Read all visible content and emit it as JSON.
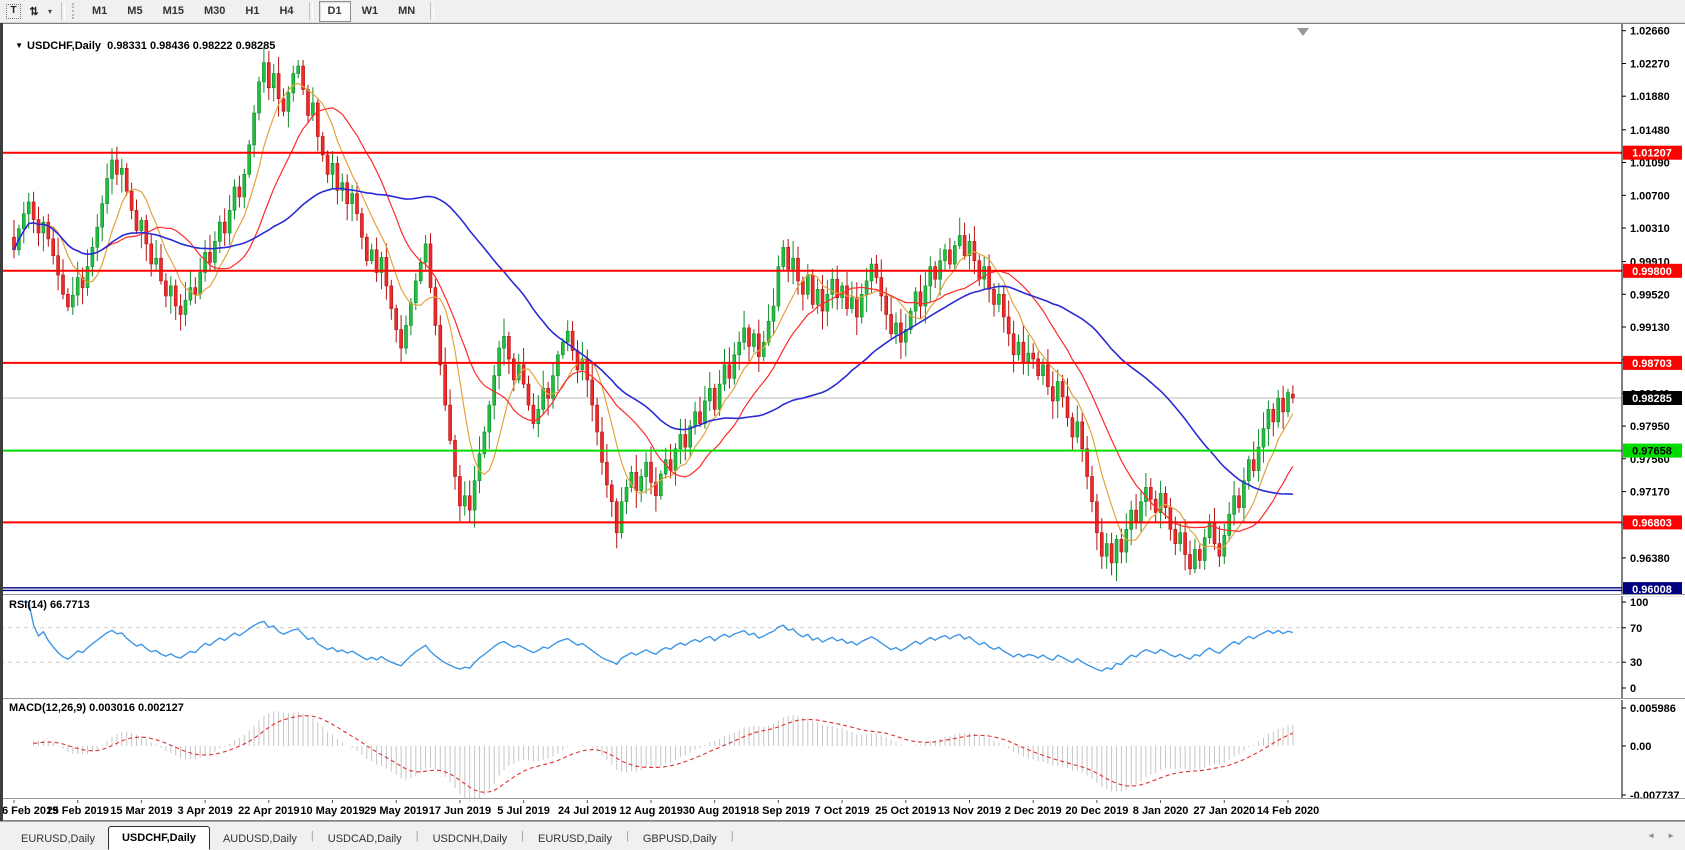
{
  "toolbar": {
    "tools": [
      {
        "name": "text-tool",
        "glyph": "T"
      },
      {
        "name": "arrange-tool",
        "glyph": "⇅"
      },
      {
        "name": "dropdown-caret",
        "glyph": "▾"
      }
    ],
    "timeframes": [
      "M1",
      "M5",
      "M15",
      "M30",
      "H1",
      "H4",
      "D1",
      "W1",
      "MN"
    ],
    "active_timeframe": "D1"
  },
  "chart_header": {
    "dropdown_glyph": "▼",
    "symbol_label": "USDCHF,Daily",
    "ohlc_text": "0.98331 0.98436 0.98222 0.98285"
  },
  "indicators": {
    "rsi_label": "RSI(14) 66.7713",
    "macd_label": "MACD(12,26,9) 0.003016 0.002127"
  },
  "tabs": {
    "items": [
      "EURUSD,Daily",
      "USDCHF,Daily",
      "AUDUSD,Daily",
      "USDCAD,Daily",
      "USDCNH,Daily",
      "EURUSD,Daily",
      "GBPUSD,Daily"
    ],
    "active_index": 1,
    "scroll_left_glyph": "◄",
    "scroll_right_glyph": "►"
  },
  "chart_data": {
    "type": "candlestick",
    "symbol": "USDCHF",
    "timeframe": "Daily",
    "ohlc_current": {
      "open": 0.98331,
      "high": 0.98436,
      "low": 0.98222,
      "close": 0.98285
    },
    "price_axis": {
      "max": 1.0274,
      "min": 0.9595,
      "ticks": [
        "1.02660",
        "1.02270",
        "1.01880",
        "1.01480",
        "1.01090",
        "1.00700",
        "1.00310",
        "0.99910",
        "0.99520",
        "0.99130",
        "0.98740",
        "0.98340",
        "0.97950",
        "0.97560",
        "0.97170",
        "0.96780",
        "0.96380"
      ]
    },
    "current_price": {
      "value": 0.98285,
      "label": "0.98285"
    },
    "levels": [
      {
        "label": "1.01207",
        "value": 1.01207,
        "color": "#FF0000",
        "width": 2,
        "text_color": "#FFFFFF",
        "double": false
      },
      {
        "label": "0.99800",
        "value": 0.998,
        "color": "#FF0000",
        "width": 2,
        "text_color": "#FFFFFF",
        "double": false
      },
      {
        "label": "0.98703",
        "value": 0.98703,
        "color": "#FF0000",
        "width": 2,
        "text_color": "#FFFFFF",
        "double": false
      },
      {
        "label": "0.97658",
        "value": 0.97658,
        "color": "#00DC00",
        "width": 2,
        "text_color": "#000000",
        "double": false
      },
      {
        "label": "0.96803",
        "value": 0.96803,
        "color": "#FF0000",
        "width": 2,
        "text_color": "#FFFFFF",
        "double": false
      },
      {
        "label": "0.96008",
        "value": 0.96008,
        "color": "#000080",
        "width": 2,
        "text_color": "#FFFFFF",
        "double": true
      }
    ],
    "x_axis_dates": [
      "6 Feb 2019",
      "25 Feb 2019",
      "15 Mar 2019",
      "3 Apr 2019",
      "22 Apr 2019",
      "10 May 2019",
      "29 May 2019",
      "17 Jun 2019",
      "5 Jul 2019",
      "24 Jul 2019",
      "12 Aug 2019",
      "30 Aug 2019",
      "18 Sep 2019",
      "7 Oct 2019",
      "25 Oct 2019",
      "13 Nov 2019",
      "2 Dec 2019",
      "20 Dec 2019",
      "8 Jan 2020",
      "27 Jan 2020",
      "14 Feb 2020"
    ],
    "candles": {
      "closes": [
        1.0005,
        1.003,
        1.0048,
        1.0062,
        1.0041,
        1.0025,
        1.0038,
        1.0018,
        0.9998,
        0.9975,
        0.9952,
        0.9937,
        0.9951,
        0.9972,
        0.996,
        0.9985,
        1.0008,
        1.0032,
        1.006,
        1.009,
        1.0112,
        1.0095,
        1.0102,
        1.0075,
        1.0052,
        1.0028,
        1.004,
        1.0012,
        0.9988,
        0.9995,
        0.9968,
        0.995,
        0.9962,
        0.9938,
        0.9928,
        0.9945,
        0.996,
        0.9952,
        0.9978,
        1.0002,
        0.999,
        1.0015,
        1.0038,
        1.0025,
        1.0052,
        1.008,
        1.0068,
        1.0095,
        1.013,
        1.0168,
        1.0205,
        1.0228,
        1.0198,
        1.0215,
        1.0185,
        1.017,
        1.0192,
        1.0215,
        1.0224,
        1.0196,
        1.0165,
        1.018,
        1.014,
        1.0118,
        1.0095,
        1.0108,
        1.0076,
        1.0085,
        1.006,
        1.0072,
        1.0048,
        1.002,
        0.9992,
        1.0005,
        0.9978,
        0.9996,
        0.9962,
        0.9935,
        0.991,
        0.9888,
        0.9915,
        0.9942,
        0.9968,
        0.999,
        1.0012,
        0.996,
        0.9915,
        0.9868,
        0.982,
        0.9778,
        0.9735,
        0.97,
        0.9712,
        0.9695,
        0.973,
        0.9762,
        0.9788,
        0.982,
        0.9855,
        0.9888,
        0.9902,
        0.9875,
        0.985,
        0.9868,
        0.9845,
        0.982,
        0.9798,
        0.9815,
        0.984,
        0.9828,
        0.9855,
        0.988,
        0.9895,
        0.9908,
        0.9885,
        0.9862,
        0.9875,
        0.985,
        0.982,
        0.9788,
        0.9752,
        0.9725,
        0.9705,
        0.9668,
        0.9705,
        0.9722,
        0.974,
        0.9718,
        0.9735,
        0.9752,
        0.9728,
        0.9712,
        0.9738,
        0.9755,
        0.9742,
        0.9768,
        0.9785,
        0.977,
        0.9795,
        0.9812,
        0.9798,
        0.9825,
        0.984,
        0.9815,
        0.9845,
        0.9868,
        0.9852,
        0.988,
        0.9895,
        0.9912,
        0.989,
        0.9905,
        0.9878,
        0.9895,
        0.992,
        0.9938,
        0.9985,
        1.0008,
        0.9982,
        0.9995,
        0.9968,
        0.9952,
        0.9975,
        0.994,
        0.9958,
        0.9932,
        0.9952,
        0.997,
        0.9948,
        0.9962,
        0.9935,
        0.9948,
        0.9925,
        0.9952,
        0.9968,
        0.9988,
        0.9972,
        0.995,
        0.9928,
        0.9905,
        0.9918,
        0.9895,
        0.991,
        0.9932,
        0.9955,
        0.9938,
        0.9962,
        0.9985,
        0.997,
        0.9992,
        1.0005,
        0.9988,
        1.001,
        1.0022,
        0.9998,
        1.0015,
        0.9992,
        0.997,
        0.9985,
        0.9958,
        0.994,
        0.9952,
        0.9925,
        0.9905,
        0.988,
        0.9895,
        0.987,
        0.9882,
        0.9875,
        0.9855,
        0.9868,
        0.9842,
        0.9825,
        0.9848,
        0.983,
        0.9805,
        0.9782,
        0.98,
        0.9768,
        0.9735,
        0.9705,
        0.9668,
        0.964,
        0.9655,
        0.9632,
        0.966,
        0.9645,
        0.9672,
        0.9695,
        0.968,
        0.9705,
        0.9722,
        0.9708,
        0.9692,
        0.9715,
        0.9698,
        0.9672,
        0.9655,
        0.9668,
        0.9642,
        0.9625,
        0.9648,
        0.9635,
        0.9662,
        0.968,
        0.9655,
        0.964,
        0.9665,
        0.969,
        0.9712,
        0.9698,
        0.973,
        0.9755,
        0.9742,
        0.977,
        0.9792,
        0.9815,
        0.98,
        0.9828,
        0.9812,
        0.9835,
        0.98285
      ]
    },
    "moving_averages": [
      {
        "period": 8,
        "color": "#E2A33C",
        "width": 1.2
      },
      {
        "period": 18,
        "color": "#FF2A2A",
        "width": 1.2
      },
      {
        "period": 48,
        "color": "#2B2BD5",
        "width": 1.6
      }
    ],
    "rsi": {
      "period": 14,
      "current": 66.7713,
      "levels": [
        70,
        30
      ],
      "axis_ticks": [
        {
          "label": "100",
          "value": 100
        },
        {
          "label": "70",
          "value": 70
        },
        {
          "label": "30",
          "value": 30
        },
        {
          "label": "0",
          "value": 0
        }
      ]
    },
    "macd": {
      "fast": 12,
      "slow": 26,
      "signal": 9,
      "current_macd": 0.003016,
      "current_signal": 0.002127,
      "range_min": -0.007737,
      "range_max": 0.005986,
      "axis_ticks": [
        {
          "label": "0.005986",
          "value": 0.005986
        },
        {
          "label": "0.00",
          "value": 0
        },
        {
          "label": "-0.007737",
          "value": -0.007737
        }
      ]
    },
    "colors": {
      "up": "#21BE3F",
      "up_stroke": "#0E8C2A",
      "down": "#EE2A2A",
      "down_stroke": "#B31111",
      "rsi_line": "#3E97E6",
      "rsi_level": "#C9C9C9",
      "macd_hist": "#C6C6C6",
      "macd_signal": "#E03030",
      "current_line": "#BBBBBB",
      "marker": "#9A9A9A",
      "axis_line": "#000000"
    }
  }
}
